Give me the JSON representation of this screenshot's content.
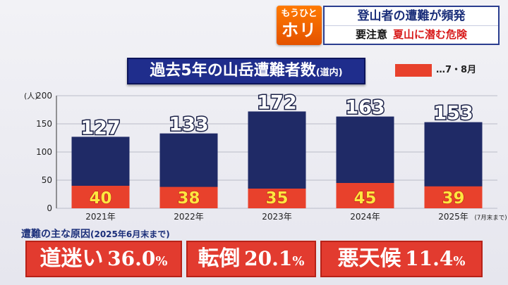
{
  "header": {
    "badge_small": "もうひと",
    "badge_big": "ホリ",
    "headline": "登山者の遭難が頻発",
    "tag": "要注意",
    "warning": "夏山に潜む危険"
  },
  "chart_title": {
    "main": "過去5年の山岳遭難者数",
    "paren": "(道内)"
  },
  "legend": {
    "label": "…7・8月",
    "color": "#e8412c"
  },
  "colors": {
    "total": "#1f2a66",
    "july_aug": "#e8412c"
  },
  "chart_data": {
    "type": "bar",
    "stacked": true,
    "categories": [
      "2021年",
      "2022年",
      "2023年",
      "2024年",
      "2025年"
    ],
    "category_notes": [
      "",
      "",
      "",
      "",
      "(7月末まで)"
    ],
    "totals": [
      127,
      133,
      172,
      163,
      153
    ],
    "series": [
      {
        "name": "7・8月",
        "values": [
          40,
          38,
          35,
          45,
          39
        ]
      }
    ],
    "y_unit": "(人)",
    "ylim": [
      0,
      200
    ],
    "yticks": [
      0,
      50,
      100,
      150,
      200
    ],
    "grid": true
  },
  "causes": {
    "header": "遭難の主な原因",
    "period": "(2025年6月末まで)",
    "items": [
      {
        "name": "道迷い",
        "value": "36.0",
        "unit": "%"
      },
      {
        "name": "転倒",
        "value": "20.1",
        "unit": "%"
      },
      {
        "name": "悪天候",
        "value": "11.4",
        "unit": "%"
      }
    ]
  }
}
